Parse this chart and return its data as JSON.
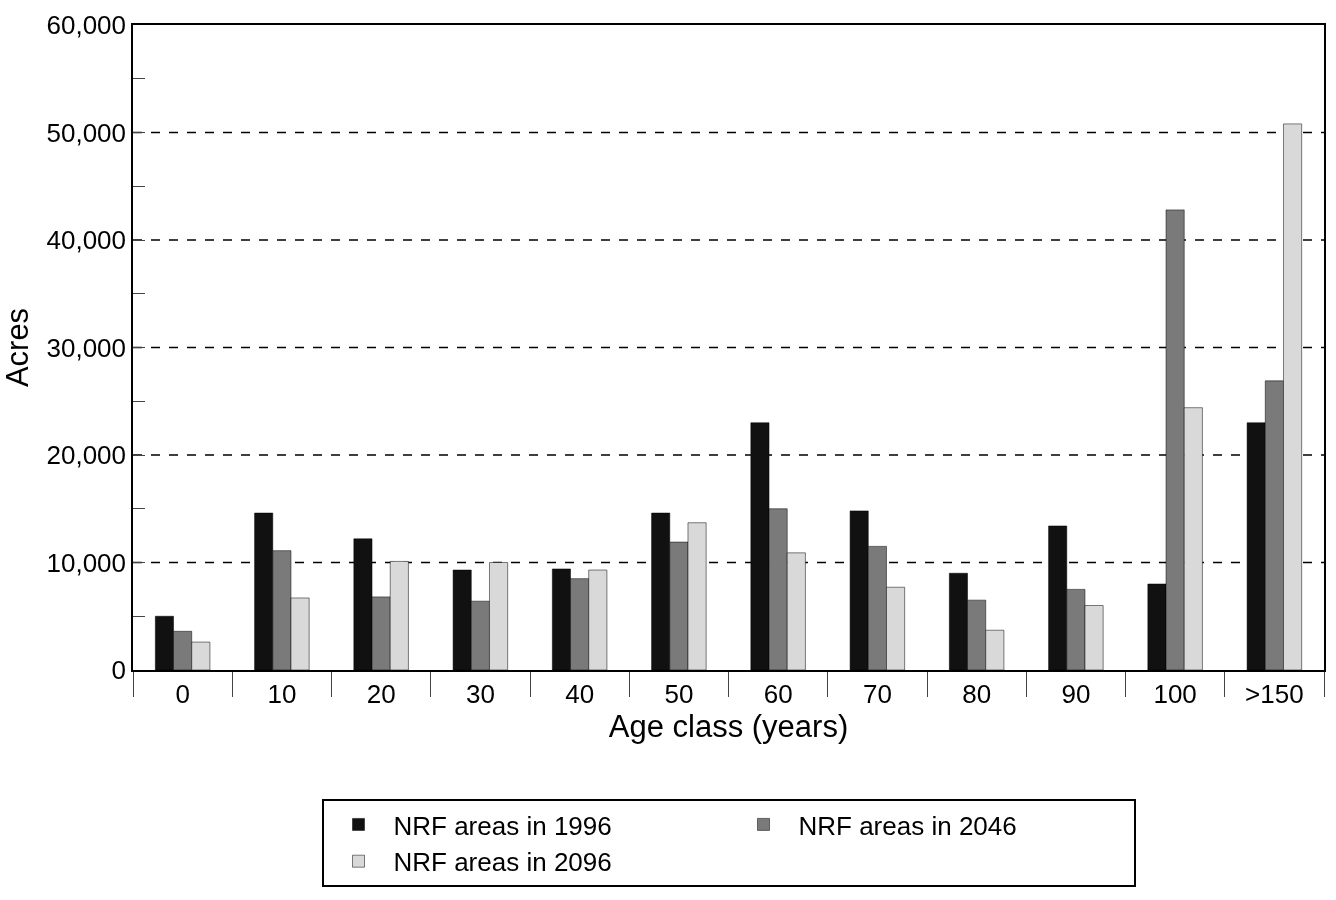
{
  "chart_data": {
    "type": "bar",
    "xlabel": "Age class (years)",
    "ylabel": "Acres",
    "categories": [
      "0",
      "10",
      "20",
      "30",
      "40",
      "50",
      "60",
      "70",
      "80",
      "90",
      "100",
      ">150"
    ],
    "series": [
      {
        "name": "NRF areas in 1996",
        "color": "#111111",
        "values": [
          5000,
          14600,
          12200,
          9300,
          9400,
          14600,
          23000,
          14800,
          9000,
          13400,
          8000,
          23000
        ]
      },
      {
        "name": "NRF areas in 2046",
        "color": "#7a7a7a",
        "values": [
          3600,
          11100,
          6800,
          6400,
          8500,
          11900,
          15000,
          11500,
          6500,
          7500,
          42800,
          26900
        ]
      },
      {
        "name": "NRF areas in 2096",
        "color": "#d9d9d9",
        "values": [
          2600,
          6700,
          10100,
          10000,
          9300,
          13700,
          10900,
          7700,
          3700,
          6000,
          24400,
          50800
        ]
      }
    ],
    "ylim": [
      0,
      60000
    ],
    "yticks": [
      0,
      {
        "value": 5000,
        "label": null
      },
      {
        "value": 10000,
        "label": "10,000"
      },
      {
        "value": 15000,
        "label": null
      },
      {
        "value": 20000,
        "label": "20,000"
      },
      {
        "value": 25000,
        "label": null
      },
      {
        "value": 30000,
        "label": "30,000"
      },
      {
        "value": 35000,
        "label": null
      },
      {
        "value": 40000,
        "label": "40,000"
      },
      {
        "value": 45000,
        "label": null
      },
      {
        "value": 50000,
        "label": "50,000"
      },
      {
        "value": 55000,
        "label": null
      },
      {
        "value": 60000,
        "label": "60,000"
      }
    ],
    "grid": "y",
    "legend": "bottom"
  }
}
